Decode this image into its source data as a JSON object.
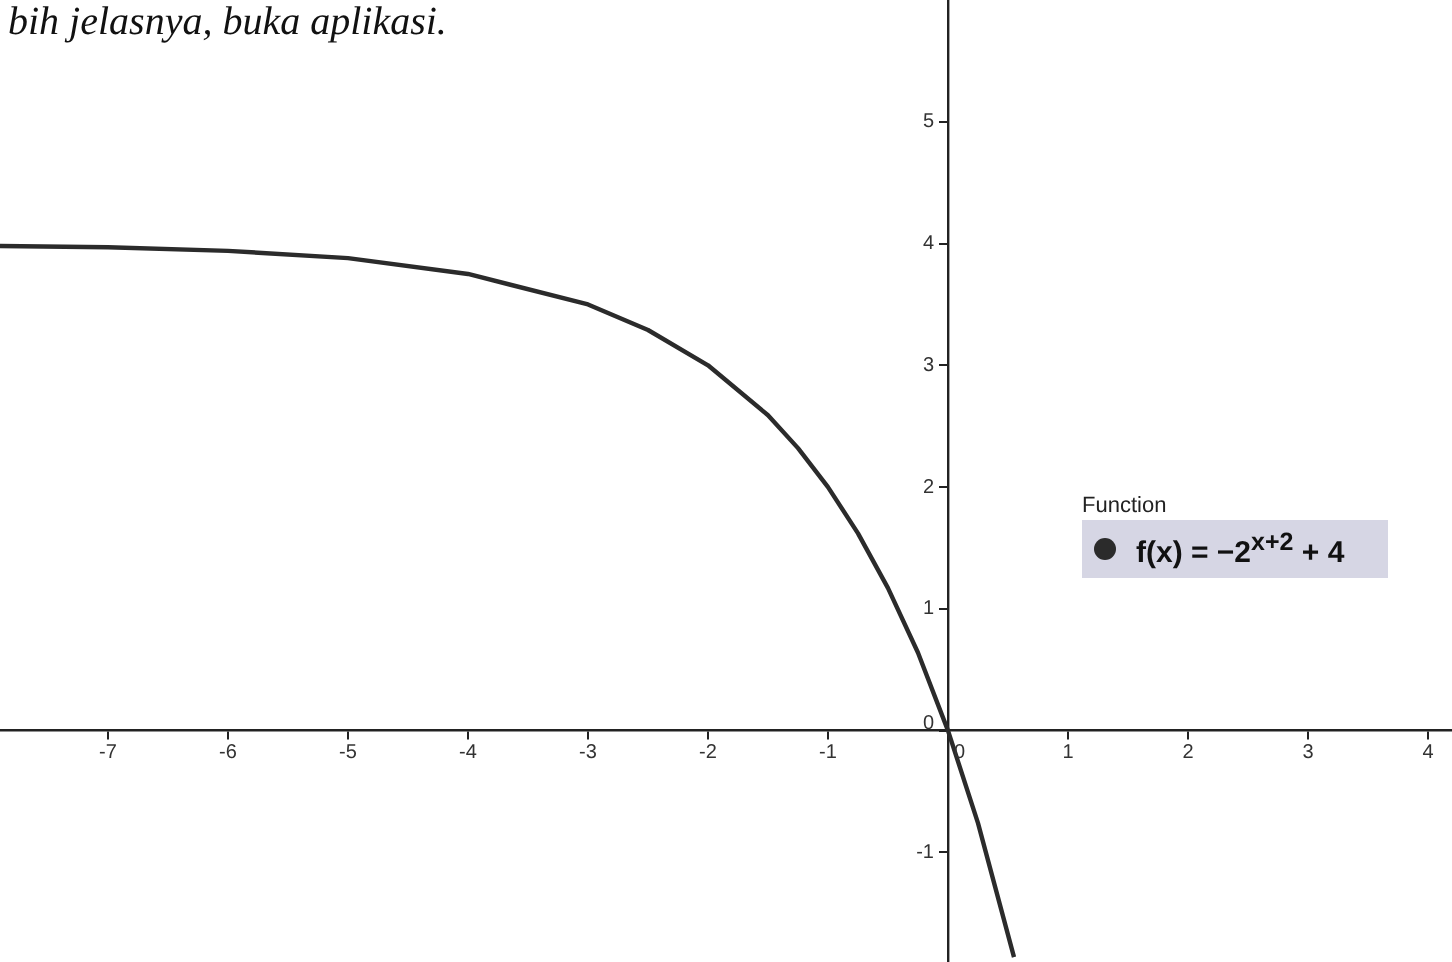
{
  "chart_data": {
    "type": "line",
    "annotations": [
      "bih jelasnya, buka aplikasi."
    ],
    "legend_title": "Function",
    "legend": "right",
    "marker": "none",
    "line_style": "solid",
    "grid": false,
    "x": [
      -7.9,
      -7,
      -6,
      -5,
      -4,
      -3,
      -2.5,
      -2,
      -1.5,
      -1.25,
      -1,
      -0.75,
      -0.5,
      -0.25,
      0,
      0.25,
      0.55
    ],
    "series": [
      {
        "name": "f(x) = −2$^{x+2}$ + 4",
        "color": "#2b2b2b",
        "values": [
          3.98,
          3.97,
          3.94,
          3.88,
          3.75,
          3.5,
          3.29,
          3,
          2.59,
          2.32,
          2,
          1.62,
          1.17,
          0.64,
          0,
          -0.76,
          -1.86
        ]
      }
    ],
    "xlim": [
      -7.9,
      4.2
    ],
    "ylim": [
      -1.9,
      6
    ],
    "xticks": [
      -7,
      -6,
      -5,
      -4,
      -3,
      -2,
      -1,
      0,
      1,
      2,
      3,
      4
    ],
    "yticks": [
      -1,
      0,
      1,
      2,
      3,
      4,
      5
    ]
  }
}
